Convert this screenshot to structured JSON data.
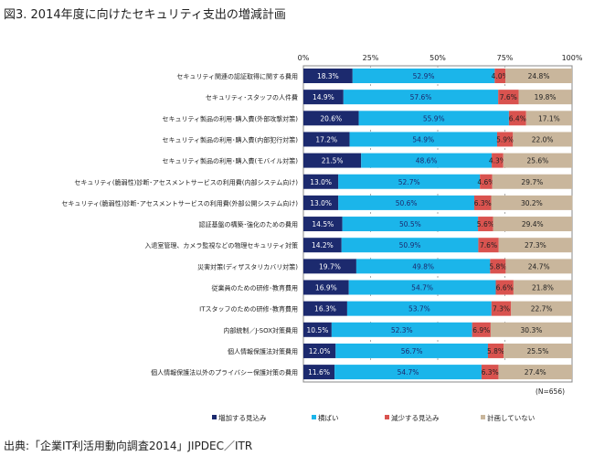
{
  "title": "図3. 2014年度に向けたセキュリティ支出の増減計画",
  "source": "出典:「企業IT利活用動向調査2014」JIPDEC／ITR",
  "chart_data": {
    "type": "bar",
    "orientation": "horizontal",
    "stacked": "100%",
    "title": "",
    "xlim": [
      0,
      100
    ],
    "x_ticks": [
      "0%",
      "25%",
      "50%",
      "75%",
      "100%"
    ],
    "grid": true,
    "legend_position": "bottom",
    "note": "(N=656)",
    "categories": [
      "セキュリティ関連の認証取得に関する費用",
      "セキュリティ･スタッフの人件費",
      "セキュリティ製品の利用･購入費(外部攻撃対策)",
      "セキュリティ製品の利用･購入費(内部犯行対策)",
      "セキュリティ製品の利用･購入費(モバイル対策)",
      "セキュリティ(脆弱性)診断･アセスメントサービスの利用費(内部システム向け)",
      "セキュリティ(脆弱性)診断･アセスメントサービスの利用費(外部公開システム向け)",
      "認証基盤の構築･強化のための費用",
      "入退室管理、カメラ監視などの物理セキュリティ対策",
      "災害対策(ディザスタリカバリ対策)",
      "従業員のための研修･教育費用",
      "ITスタッフのための研修･教育費用",
      "内部統制／J-SOX対策費用",
      "個人情報保護法対策費用",
      "個人情報保護法以外のプライバシー保護対策の費用"
    ],
    "series": [
      {
        "name": "増加する見込み",
        "color": "#1c2a6e",
        "label_color": "#ffffff",
        "values": [
          18.3,
          14.9,
          20.6,
          17.2,
          21.5,
          13.0,
          13.0,
          14.5,
          14.2,
          19.7,
          16.9,
          16.3,
          10.5,
          12.0,
          11.6
        ]
      },
      {
        "name": "横ばい",
        "color": "#1bb5ea",
        "label_color": "#1c2a6e",
        "values": [
          52.9,
          57.6,
          55.9,
          54.9,
          48.6,
          52.7,
          50.6,
          50.5,
          50.9,
          49.8,
          54.7,
          53.7,
          52.3,
          56.7,
          54.7
        ]
      },
      {
        "name": "減少する見込み",
        "color": "#d9534f",
        "label_color": "#222222",
        "values": [
          4.0,
          7.6,
          6.4,
          5.9,
          4.3,
          4.6,
          6.3,
          5.6,
          7.6,
          5.8,
          6.6,
          7.3,
          6.9,
          5.8,
          6.3
        ]
      },
      {
        "name": "計画していない",
        "color": "#c9b69c",
        "label_color": "#222222",
        "values": [
          24.8,
          19.8,
          17.1,
          22.0,
          25.6,
          29.7,
          30.2,
          29.4,
          27.3,
          24.7,
          21.8,
          22.7,
          30.3,
          25.5,
          27.4
        ]
      }
    ]
  }
}
